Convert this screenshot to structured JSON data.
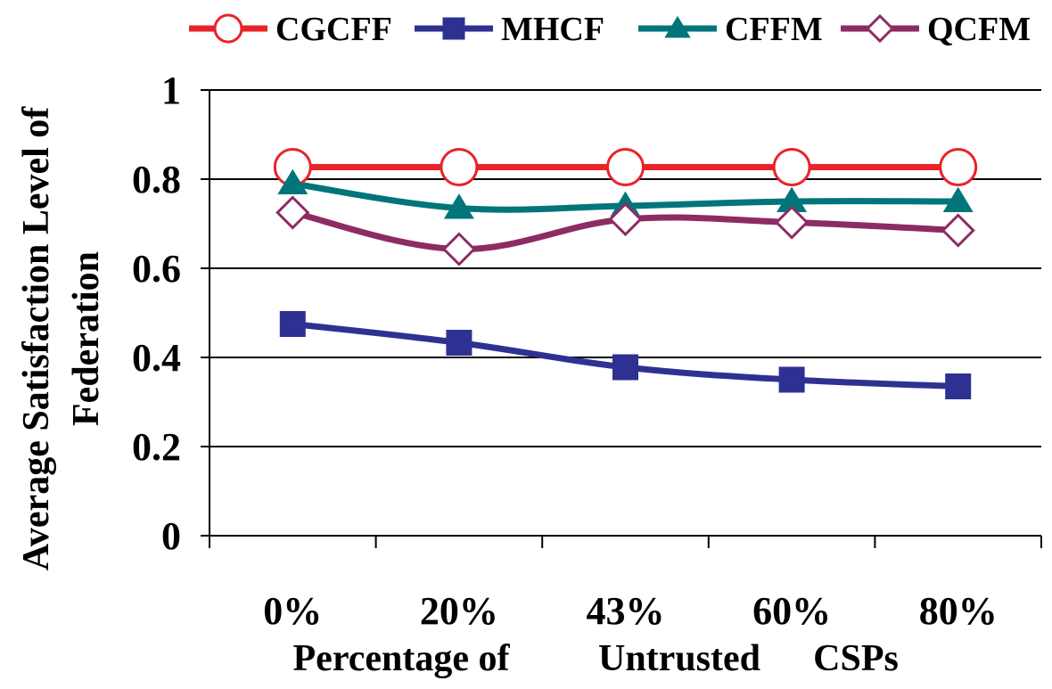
{
  "chart_data": {
    "type": "line",
    "categories": [
      "0%",
      "20%",
      "43%",
      "60%",
      "80%"
    ],
    "xlabel_part1": "Percentage of",
    "xlabel_part2": "Untrusted",
    "xlabel_part3": "CSPs",
    "ylabel_line1": "Average Satisfaction Level of",
    "ylabel_line2": "Federation",
    "ylim": [
      0,
      1
    ],
    "yticks": [
      "0",
      "0.2",
      "0.4",
      "0.6",
      "0.8",
      "1"
    ],
    "grid": true,
    "legend_position": "top",
    "series": [
      {
        "name": "CGCFF",
        "values": [
          0.827,
          0.827,
          0.827,
          0.827,
          0.827
        ],
        "color": "#e8232a",
        "marker": "circle-open"
      },
      {
        "name": "MHCF",
        "values": [
          0.475,
          0.433,
          0.378,
          0.35,
          0.335
        ],
        "color": "#2e3192",
        "marker": "square"
      },
      {
        "name": "CFFM",
        "values": [
          0.79,
          0.735,
          0.74,
          0.75,
          0.75
        ],
        "color": "#00757a",
        "marker": "triangle"
      },
      {
        "name": "QCFM",
        "values": [
          0.725,
          0.643,
          0.71,
          0.703,
          0.685
        ],
        "color": "#8e2b63",
        "marker": "diamond-open"
      }
    ]
  }
}
